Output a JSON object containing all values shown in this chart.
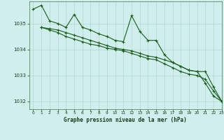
{
  "title": "Graphe pression niveau de la mer (hPa)",
  "bg_color": "#d0eeed",
  "grid_color": "#b0d8cc",
  "line_color": "#1a5c1a",
  "xlim": [
    -0.5,
    23
  ],
  "ylim": [
    1031.7,
    1035.85
  ],
  "yticks": [
    1032,
    1033,
    1034,
    1035
  ],
  "xticks": [
    0,
    1,
    2,
    3,
    4,
    5,
    6,
    7,
    8,
    9,
    10,
    11,
    12,
    13,
    14,
    15,
    16,
    17,
    18,
    19,
    20,
    21,
    22,
    23
  ],
  "line1_x": [
    0,
    1,
    2,
    3,
    4,
    5,
    6,
    7,
    8,
    9,
    10,
    11,
    12,
    13,
    14,
    15,
    16,
    17,
    18,
    19,
    20,
    21,
    22,
    23
  ],
  "line1_y": [
    1035.55,
    1035.7,
    1035.1,
    1035.0,
    1034.85,
    1035.35,
    1034.85,
    1034.75,
    1034.6,
    1034.5,
    1034.35,
    1034.3,
    1035.3,
    1034.7,
    1034.35,
    1034.35,
    1033.8,
    1033.5,
    1033.35,
    1033.2,
    1033.15,
    1032.7,
    1032.2,
    1032.0
  ],
  "line2_x": [
    1,
    2,
    3,
    4,
    5,
    6,
    7,
    8,
    9,
    10,
    11,
    12,
    13,
    14,
    15,
    16,
    17,
    18,
    19,
    20,
    21,
    22,
    23
  ],
  "line2_y": [
    1034.85,
    1034.8,
    1034.75,
    1034.65,
    1034.55,
    1034.45,
    1034.35,
    1034.25,
    1034.15,
    1034.05,
    1034.0,
    1033.95,
    1033.85,
    1033.75,
    1033.7,
    1033.6,
    1033.5,
    1033.35,
    1033.2,
    1033.15,
    1033.15,
    1032.55,
    1032.0
  ],
  "line3_x": [
    1,
    2,
    3,
    4,
    5,
    6,
    7,
    8,
    9,
    10,
    11,
    12,
    13,
    14,
    15,
    16,
    17,
    18,
    19,
    20,
    21,
    22,
    23
  ],
  "line3_y": [
    1034.85,
    1034.75,
    1034.65,
    1034.5,
    1034.4,
    1034.3,
    1034.2,
    1034.15,
    1034.05,
    1034.0,
    1033.95,
    1033.85,
    1033.75,
    1033.65,
    1033.6,
    1033.45,
    1033.3,
    1033.15,
    1033.05,
    1033.0,
    1032.85,
    1032.4,
    1032.0
  ]
}
